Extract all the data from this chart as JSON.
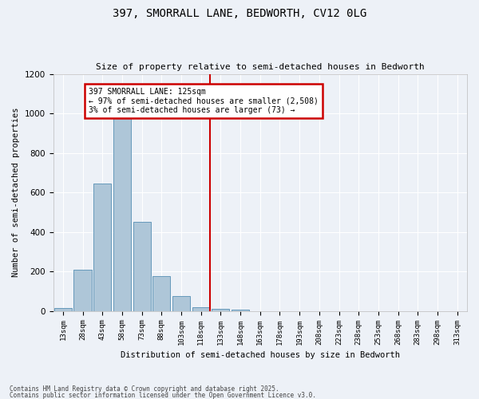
{
  "title_line1": "397, SMORRALL LANE, BEDWORTH, CV12 0LG",
  "title_line2": "Size of property relative to semi-detached houses in Bedworth",
  "xlabel": "Distribution of semi-detached houses by size in Bedworth",
  "ylabel": "Number of semi-detached properties",
  "footnote1": "Contains HM Land Registry data © Crown copyright and database right 2025.",
  "footnote2": "Contains public sector information licensed under the Open Government Licence v3.0.",
  "bar_labels": [
    "13sqm",
    "28sqm",
    "43sqm",
    "58sqm",
    "73sqm",
    "88sqm",
    "103sqm",
    "118sqm",
    "133sqm",
    "148sqm",
    "163sqm",
    "178sqm",
    "193sqm",
    "208sqm",
    "223sqm",
    "238sqm",
    "253sqm",
    "268sqm",
    "283sqm",
    "298sqm",
    "313sqm"
  ],
  "bar_values": [
    15,
    210,
    645,
    1000,
    450,
    175,
    75,
    20,
    10,
    5,
    0,
    0,
    0,
    0,
    0,
    0,
    0,
    0,
    0,
    0,
    0
  ],
  "bar_color": "#aec6d8",
  "bar_edge_color": "#6699bb",
  "vline_x": 7.47,
  "vline_color": "#cc0000",
  "annotation_text": "397 SMORRALL LANE: 125sqm\n← 97% of semi-detached houses are smaller (2,508)\n3% of semi-detached houses are larger (73) →",
  "annotation_box_color": "#ffffff",
  "annotation_box_edge": "#cc0000",
  "ylim": [
    0,
    1200
  ],
  "yticks": [
    0,
    200,
    400,
    600,
    800,
    1000,
    1200
  ],
  "background_color": "#edf1f7",
  "grid_color": "#ffffff",
  "figwidth": 6.0,
  "figheight": 5.0,
  "dpi": 100
}
